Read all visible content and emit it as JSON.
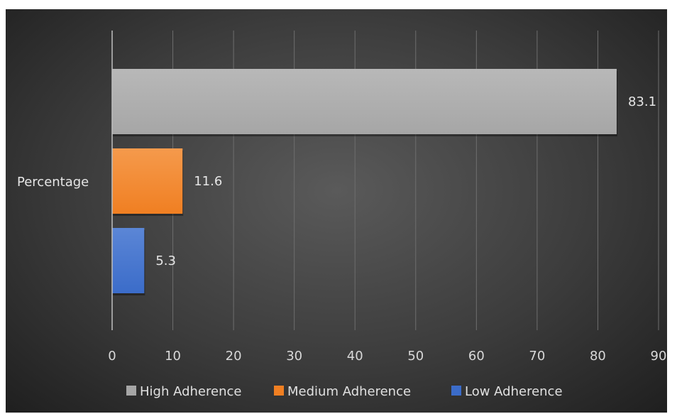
{
  "chart_data": {
    "type": "bar",
    "orientation": "horizontal",
    "categories": [
      "Percentage"
    ],
    "series": [
      {
        "name": "High Adherence",
        "values": [
          83.1
        ],
        "color": "#a6a6a6"
      },
      {
        "name": "Medium Adherence",
        "values": [
          11.6
        ],
        "color": "#f07f22"
      },
      {
        "name": "Low Adherence",
        "values": [
          5.3
        ],
        "color": "#3b6cc9"
      }
    ],
    "xlim": [
      0,
      90
    ],
    "x_ticks": [
      "0",
      "10",
      "20",
      "30",
      "40",
      "50",
      "60",
      "70",
      "80",
      "90"
    ],
    "data_labels": [
      "83.1",
      "11.6",
      "5.3"
    ],
    "grid": true,
    "legend_position": "bottom",
    "background": "#404040"
  }
}
